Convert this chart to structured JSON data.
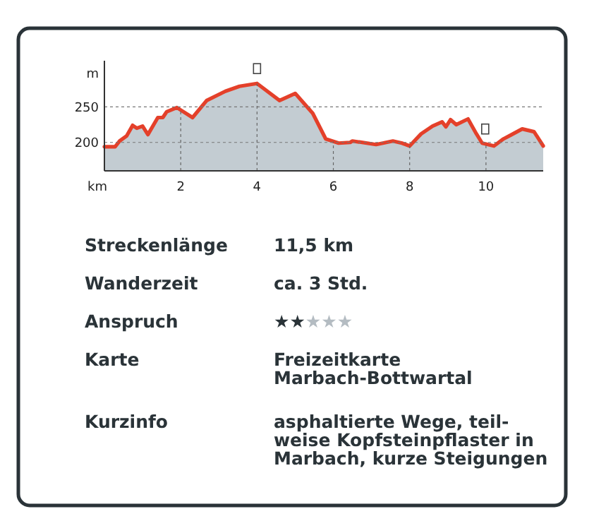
{
  "chart_data": [
    {
      "type": "area",
      "xlabel": "km",
      "ylabel": "m",
      "xlim": [
        0,
        11.5
      ],
      "ylim": [
        160,
        315
      ],
      "xticks": [
        2,
        4,
        6,
        8,
        10
      ],
      "yticks": [
        200,
        250
      ],
      "grid": true,
      "x": [
        0,
        0.28,
        0.4,
        0.58,
        0.74,
        0.85,
        1.0,
        1.14,
        1.4,
        1.53,
        1.63,
        1.9,
        2.31,
        2.68,
        3.17,
        3.54,
        4.0,
        4.59,
        5.0,
        5.46,
        5.8,
        6.14,
        6.44,
        6.5,
        7.12,
        7.56,
        7.8,
        8.0,
        8.3,
        8.6,
        8.85,
        8.95,
        9.07,
        9.22,
        9.53,
        9.75,
        9.9,
        10.21,
        10.46,
        10.64,
        10.95,
        11.26,
        11.38,
        11.5
      ],
      "series": [
        {
          "color": "#e4402a",
          "values": [
            194,
            194,
            202,
            209,
            224,
            220,
            223,
            211,
            235,
            235,
            243,
            249,
            235,
            259,
            272,
            279,
            283,
            259,
            269,
            241,
            205,
            199,
            200,
            202,
            197,
            202,
            199,
            195,
            212,
            223,
            229,
            222,
            232,
            225,
            233,
            212,
            199,
            195,
            205,
            210,
            219,
            215,
            205,
            195
          ]
        }
      ]
    },
    {
      "type": "other",
      "annotations": [
        "Streckenlänge",
        "11,5 km",
        "Wanderzeit",
        "ca. 3 Std.",
        "Anspruch",
        "★★",
        "★★★",
        "Karte",
        "Freizeitkarte\nMarbach-Bottwartal",
        "Kurzinfo",
        "asphaltierte Wege, teil-\nweise Kopfsteinpflaster in\nMarbach, kurze Steigungen"
      ]
    }
  ]
}
